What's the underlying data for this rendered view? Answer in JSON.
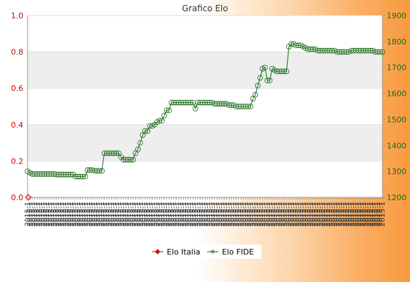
{
  "chart_data": {
    "type": "line",
    "title": "Grafico Elo",
    "y_left": {
      "min": 0.0,
      "max": 1.0,
      "ticks": [
        "0.0",
        "0.2",
        "0.4",
        "0.6",
        "0.8",
        "1.0"
      ],
      "color": "#cc0000"
    },
    "y_right": {
      "min": 1200,
      "max": 1900,
      "ticks": [
        "1200",
        "1300",
        "1400",
        "1500",
        "1600",
        "1700",
        "1800",
        "1900"
      ],
      "color": "#1a6a1a"
    },
    "x_label_sample": "2015-1",
    "legend_position": "bottom",
    "grid": "horizontal bands",
    "series": [
      {
        "name": "Elo Italia",
        "axis": "left",
        "color": "#cc0000",
        "values": [
          0
        ]
      },
      {
        "name": "Elo FIDE",
        "axis": "right",
        "color": "#1a6a1a",
        "values": [
          1300,
          1295,
          1290,
          1290,
          1290,
          1290,
          1290,
          1290,
          1290,
          1290,
          1290,
          1290,
          1288,
          1288,
          1288,
          1288,
          1288,
          1288,
          1288,
          1288,
          1280,
          1280,
          1280,
          1280,
          1280,
          1305,
          1305,
          1305,
          1302,
          1302,
          1302,
          1302,
          1370,
          1370,
          1370,
          1370,
          1370,
          1370,
          1370,
          1355,
          1345,
          1345,
          1345,
          1345,
          1345,
          1370,
          1385,
          1410,
          1440,
          1455,
          1455,
          1475,
          1475,
          1480,
          1490,
          1495,
          1495,
          1515,
          1535,
          1535,
          1565,
          1565,
          1565,
          1565,
          1565,
          1565,
          1565,
          1565,
          1565,
          1565,
          1542,
          1565,
          1565,
          1565,
          1565,
          1565,
          1565,
          1565,
          1560,
          1560,
          1560,
          1560,
          1560,
          1560,
          1555,
          1555,
          1555,
          1550,
          1550,
          1550,
          1550,
          1550,
          1550,
          1550,
          1580,
          1595,
          1630,
          1660,
          1695,
          1700,
          1650,
          1650,
          1695,
          1690,
          1685,
          1685,
          1685,
          1685,
          1685,
          1780,
          1790,
          1790,
          1785,
          1785,
          1785,
          1780,
          1775,
          1770,
          1770,
          1770,
          1770,
          1765,
          1765,
          1765,
          1765,
          1765,
          1765,
          1765,
          1765,
          1760,
          1760,
          1760,
          1760,
          1760,
          1760,
          1765,
          1765,
          1765,
          1765,
          1765,
          1765,
          1765,
          1765,
          1765,
          1765,
          1760,
          1760,
          1760,
          1760
        ]
      }
    ]
  }
}
